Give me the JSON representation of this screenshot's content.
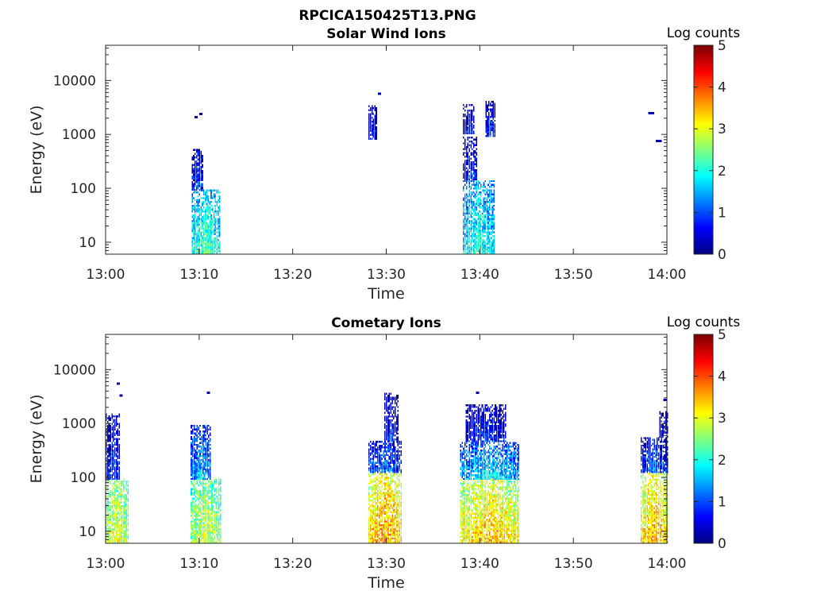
{
  "figure": {
    "title": "RPCICA150425T13.PNG"
  },
  "colorbar": {
    "label": "Log counts",
    "ticks": [
      "0",
      "1",
      "2",
      "3",
      "4",
      "5"
    ],
    "range": [
      0,
      5
    ],
    "colormap": "jet"
  },
  "chart_data": [
    {
      "type": "heatmap",
      "title": "Solar Wind Ions",
      "xlabel": "Time",
      "ylabel": "Energy (eV)",
      "xticks": [
        "13:00",
        "13:10",
        "13:20",
        "13:30",
        "13:40",
        "13:50",
        "14:00"
      ],
      "xlim_minutes": [
        0,
        60
      ],
      "yticks": [
        "10",
        "100",
        "1000",
        "10000"
      ],
      "yscale": "log",
      "ylim": [
        6,
        45000
      ],
      "clim": [
        0,
        5
      ],
      "blobs": [
        {
          "t": [
            9.2,
            12.2
          ],
          "e": [
            6,
            90
          ],
          "c": 1.9
        },
        {
          "t": [
            9.2,
            10.4
          ],
          "e": [
            90,
            520
          ],
          "c": 0.7
        },
        {
          "t": [
            38.2,
            41.6
          ],
          "e": [
            6,
            140
          ],
          "c": 1.7
        },
        {
          "t": [
            38.2,
            39.6
          ],
          "e": [
            140,
            900
          ],
          "c": 0.6
        },
        {
          "t": [
            28.1,
            28.9
          ],
          "e": [
            800,
            3200
          ],
          "c": 0.4
        },
        {
          "t": [
            38.2,
            39.4
          ],
          "e": [
            1000,
            3500
          ],
          "c": 0.5
        },
        {
          "t": [
            40.6,
            41.6
          ],
          "e": [
            900,
            4000
          ],
          "c": 0.6
        }
      ],
      "dots": [
        {
          "t": 9.5,
          "e": 2200
        },
        {
          "t": 10.0,
          "e": 2500
        },
        {
          "t": 29.1,
          "e": 6000
        },
        {
          "t": 58.0,
          "e": 2600
        },
        {
          "t": 58.3,
          "e": 2600
        },
        {
          "t": 58.8,
          "e": 800
        },
        {
          "t": 59.1,
          "e": 800
        }
      ]
    },
    {
      "type": "heatmap",
      "title": "Cometary Ions",
      "xlabel": "Time",
      "ylabel": "Energy (eV)",
      "xticks": [
        "13:00",
        "13:10",
        "13:20",
        "13:30",
        "13:40",
        "13:50",
        "14:00"
      ],
      "xlim_minutes": [
        0,
        60
      ],
      "yticks": [
        "10",
        "100",
        "1000",
        "10000"
      ],
      "yscale": "log",
      "ylim": [
        6,
        45000
      ],
      "clim": [
        0,
        5
      ],
      "blobs": [
        {
          "t": [
            0.0,
            2.4
          ],
          "e": [
            6,
            90
          ],
          "c": 2.7
        },
        {
          "t": [
            0.0,
            1.4
          ],
          "e": [
            90,
            1500
          ],
          "c": 0.6
        },
        {
          "t": [
            9.1,
            12.2
          ],
          "e": [
            6,
            90
          ],
          "c": 2.6
        },
        {
          "t": [
            9.1,
            11.2
          ],
          "e": [
            90,
            900
          ],
          "c": 1.2
        },
        {
          "t": [
            28.1,
            31.6
          ],
          "e": [
            6,
            120
          ],
          "c": 3.3
        },
        {
          "t": [
            28.1,
            31.6
          ],
          "e": [
            120,
            450
          ],
          "c": 0.9
        },
        {
          "t": [
            29.8,
            31.2
          ],
          "e": [
            450,
            3500
          ],
          "c": 0.5
        },
        {
          "t": [
            37.9,
            44.2
          ],
          "e": [
            6,
            90
          ],
          "c": 3.1
        },
        {
          "t": [
            37.9,
            44.2
          ],
          "e": [
            90,
            450
          ],
          "c": 1.4
        },
        {
          "t": [
            38.5,
            42.8
          ],
          "e": [
            450,
            2200
          ],
          "c": 0.5
        },
        {
          "t": [
            57.2,
            60.0
          ],
          "e": [
            6,
            120
          ],
          "c": 3.2
        },
        {
          "t": [
            57.2,
            60.0
          ],
          "e": [
            120,
            550
          ],
          "c": 0.8
        },
        {
          "t": [
            59.2,
            60.0
          ],
          "e": [
            550,
            1600
          ],
          "c": 0.4
        }
      ],
      "dots": [
        {
          "t": 1.2,
          "e": 5800
        },
        {
          "t": 1.5,
          "e": 3500
        },
        {
          "t": 10.8,
          "e": 3900
        },
        {
          "t": 39.6,
          "e": 3900
        },
        {
          "t": 59.6,
          "e": 2900
        }
      ]
    }
  ]
}
